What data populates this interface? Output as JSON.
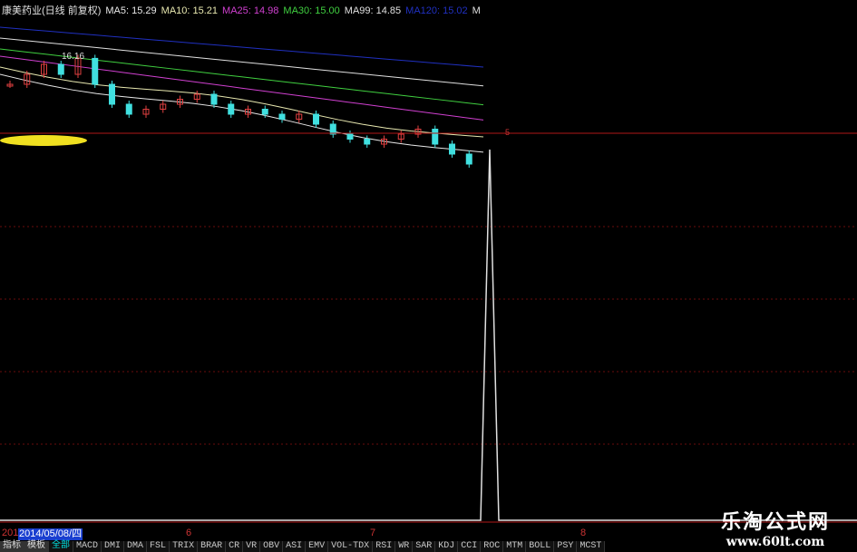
{
  "title": {
    "stock": "康美药业(日线 前复权)",
    "ma": [
      {
        "label": "MA5: 15.29",
        "color": "#e8e8e8"
      },
      {
        "label": "MA10: 15.21",
        "color": "#e8e8b0"
      },
      {
        "label": "MA25: 14.98",
        "color": "#d040d0"
      },
      {
        "label": "MA30: 15.00",
        "color": "#40d040"
      },
      {
        "label": "MA99: 14.85",
        "color": "#e0e0e0"
      },
      {
        "label": "MA120: 15.02",
        "color": "#2030c0"
      },
      {
        "label": "M",
        "color": "#e0e0e0"
      }
    ]
  },
  "price_label": "16.16",
  "indicator_level": "5",
  "axis": {
    "year": "2014",
    "cursor_date": "2014/05/08/四",
    "months": [
      "6",
      "7",
      "8"
    ]
  },
  "tabs": [
    "指标",
    "模板",
    "全部",
    "MACD",
    "DMI",
    "DMA",
    "FSL",
    "TRIX",
    "BRAR",
    "CR",
    "VR",
    "OBV",
    "ASI",
    "EMV",
    "VOL-TDX",
    "RSI",
    "WR",
    "SAR",
    "KDJ",
    "CCI",
    "ROC",
    "MTM",
    "BOLL",
    "PSY",
    "MCST"
  ],
  "active_tab": "全部",
  "watermark": {
    "name": "乐淘公式网",
    "url": "www.60lt.com"
  },
  "chart_data": {
    "type": "line",
    "closes": [
      15.9,
      16.0,
      16.1,
      16.0,
      16.16,
      15.9,
      15.7,
      15.6,
      15.65,
      15.7,
      15.75,
      15.8,
      15.7,
      15.6,
      15.65,
      15.6,
      15.55,
      15.6,
      15.5,
      15.4,
      15.35,
      15.3,
      15.35,
      15.4,
      15.45,
      15.3,
      15.2,
      15.1
    ],
    "indicator_spike": {
      "position": 0.81,
      "value": 5
    }
  },
  "colors": {
    "grid": "#8b1010",
    "up": "#e04040",
    "down": "#40e0e0",
    "spike": "#e0e0e0"
  }
}
